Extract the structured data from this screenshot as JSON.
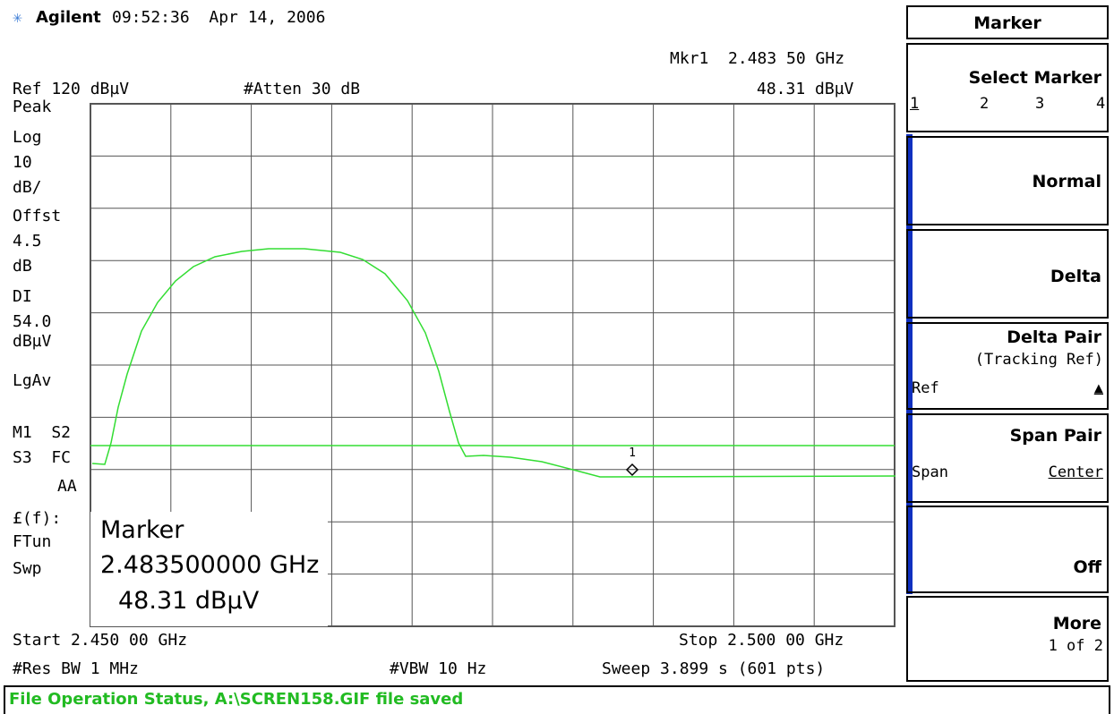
{
  "header": {
    "brand": "Agilent",
    "datetime": "09:52:36  Apr 14, 2006"
  },
  "top": {
    "marker_readout": "Mkr1  2.483 50 GHz",
    "ref_level": "Ref 120 dBµV",
    "attenuation": "#Atten 30 dB",
    "marker_amplitude": "48.31 dBµV"
  },
  "left_panel": [
    "Peak",
    "Log",
    "10",
    "dB/",
    "Offst",
    "4.5",
    "dB",
    "DI",
    "54.0",
    "dBµV",
    "LgAv",
    "M1  S2",
    "S3  FC",
    "AA",
    "£(f):",
    "FTun",
    "Swp"
  ],
  "marker_box": {
    "title": "Marker",
    "frequency": "2.483500000 GHz",
    "amplitude": "48.31 dBµV"
  },
  "graph": {
    "marker_label": "1"
  },
  "bottom": {
    "start": "Start 2.450 00 GHz",
    "stop": "Stop 2.500 00 GHz",
    "res_bw": "#Res BW 1 MHz",
    "vbw": "#VBW 10 Hz",
    "sweep": "Sweep 3.899 s (601 pts)"
  },
  "status": "File Operation Status, A:\\SCREN158.GIF file saved",
  "softkeys": {
    "title": "Marker",
    "select_marker": {
      "label": "Select Marker",
      "options": [
        "1",
        "2",
        "3",
        "4"
      ]
    },
    "normal": "Normal",
    "delta": "Delta",
    "delta_pair": {
      "label": "Delta Pair",
      "sub": "(Tracking Ref)",
      "left": "Ref",
      "right": "▲"
    },
    "span_pair": {
      "label": "Span Pair",
      "left": "Span",
      "right": "Center"
    },
    "off": "Off",
    "more": {
      "label": "More",
      "sub": "1 of 2"
    }
  }
}
